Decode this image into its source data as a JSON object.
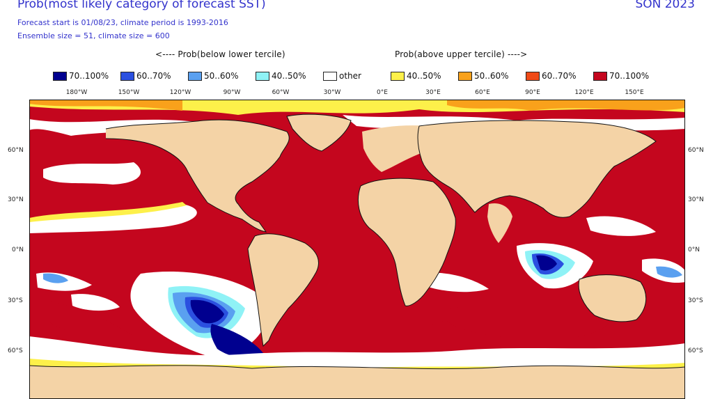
{
  "header": {
    "title": "Prob(most likely category of forecast SST)",
    "season": "SON 2023",
    "subtitle1": "Forecast start is 01/08/23, climate period is 1993-2016",
    "subtitle2": "Ensemble size = 51, climate size = 600"
  },
  "legend": {
    "below_heading": "<---- Prob(below lower tercile)",
    "above_heading": "Prob(above upper tercile) ---->",
    "items": [
      {
        "label": "70..100%",
        "color": "#00008f"
      },
      {
        "label": "60..70%",
        "color": "#2b50e0"
      },
      {
        "label": "50..60%",
        "color": "#5aa0f0"
      },
      {
        "label": "40..50%",
        "color": "#8ff2f6"
      },
      {
        "label": "other",
        "color": "#ffffff"
      },
      {
        "label": "40..50%",
        "color": "#fdf04a"
      },
      {
        "label": "50..60%",
        "color": "#f9a11b"
      },
      {
        "label": "60..70%",
        "color": "#ef4a17"
      },
      {
        "label": "70..100%",
        "color": "#c4061e"
      }
    ]
  },
  "axes": {
    "longitudes": [
      "180°W",
      "150°W",
      "120°W",
      "90°W",
      "60°W",
      "30°W",
      "0°E",
      "30°E",
      "60°E",
      "90°E",
      "120°E",
      "150°E"
    ],
    "latitudes": [
      "60°N",
      "30°N",
      "0°N",
      "30°S",
      "60°S"
    ]
  },
  "colors": {
    "land": "#f4d3a6",
    "coast": "#111111",
    "warm_strong": "#c4061e",
    "warm_mid": "#ef4a17",
    "warm_weak": "#f9a11b",
    "warm_light": "#fdf04a",
    "cold_strong": "#00008f",
    "cold_mid": "#2b50e0",
    "cold_weak": "#5aa0f0",
    "cold_light": "#8ff2f6",
    "neutral": "#ffffff"
  }
}
